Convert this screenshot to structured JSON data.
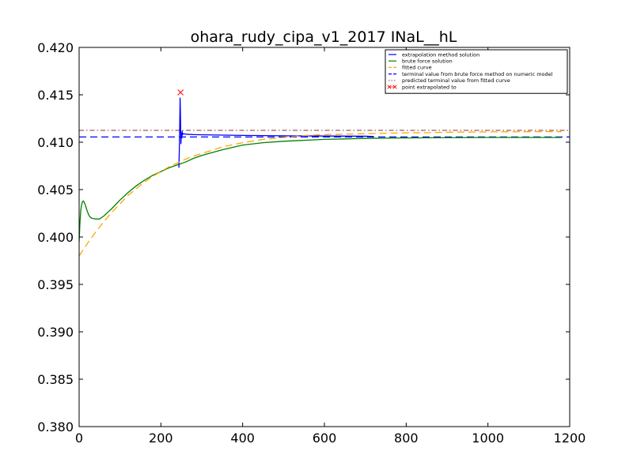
{
  "chart_data": {
    "type": "line",
    "title": "ohara_rudy_cipa_v1_2017 INaL__hL",
    "xlabel": "",
    "ylabel": "",
    "xlim": [
      0,
      1200
    ],
    "ylim": [
      0.38,
      0.42
    ],
    "x_ticks": [
      0,
      200,
      400,
      600,
      800,
      1000,
      1200
    ],
    "x_tick_labels": [
      "0",
      "200",
      "400",
      "600",
      "800",
      "1000",
      "1200"
    ],
    "y_ticks": [
      0.38,
      0.385,
      0.39,
      0.395,
      0.4,
      0.405,
      0.41,
      0.415,
      0.42
    ],
    "y_tick_labels": [
      "0.380",
      "0.385",
      "0.390",
      "0.395",
      "0.400",
      "0.405",
      "0.410",
      "0.415",
      "0.420"
    ],
    "grid": false,
    "legend_position": "top-right",
    "series": [
      {
        "name": "brute force solution",
        "color": "#008000",
        "style": "solid",
        "x": [
          0,
          2,
          4,
          6,
          8,
          10,
          12,
          15,
          20,
          25,
          30,
          40,
          50,
          60,
          70,
          80,
          100,
          120,
          140,
          160,
          180,
          200,
          220,
          240,
          260,
          280,
          300,
          350,
          400,
          450,
          500,
          550,
          600,
          650,
          700,
          800,
          900,
          1000,
          1100,
          1180
        ],
        "y": [
          0.3995,
          0.4015,
          0.4028,
          0.4034,
          0.4037,
          0.4038,
          0.4037,
          0.4034,
          0.4027,
          0.4022,
          0.402,
          0.4019,
          0.4019,
          0.4022,
          0.4026,
          0.403,
          0.4039,
          0.4047,
          0.4054,
          0.406,
          0.4065,
          0.4069,
          0.4073,
          0.4076,
          0.4079,
          0.4083,
          0.4086,
          0.4092,
          0.4097,
          0.40995,
          0.4101,
          0.4102,
          0.4103,
          0.41035,
          0.4104,
          0.41045,
          0.41048,
          0.4105,
          0.4105,
          0.4105
        ]
      },
      {
        "name": "extrapolation method solution",
        "color": "#0000ff",
        "style": "solid",
        "x": [
          244,
          245,
          246,
          247,
          248,
          249,
          250,
          251,
          252,
          253,
          255,
          260,
          280,
          300,
          400,
          500,
          600,
          700,
          720
        ],
        "y": [
          0.4073,
          0.409,
          0.4115,
          0.4147,
          0.4125,
          0.4098,
          0.411,
          0.4104,
          0.4112,
          0.4108,
          0.4109,
          0.41085,
          0.4108,
          0.41078,
          0.41072,
          0.41068,
          0.41065,
          0.41063,
          0.4106
        ]
      },
      {
        "name": "fitted curve",
        "color": "#ffa500",
        "style": "dashed",
        "x": [
          0,
          20,
          40,
          60,
          80,
          100,
          120,
          140,
          160,
          180,
          200,
          220,
          240,
          260,
          280,
          300,
          350,
          400,
          450,
          500,
          550,
          600,
          650,
          700,
          750,
          800,
          850,
          900,
          950,
          1000,
          1050,
          1100,
          1150,
          1180
        ],
        "y": [
          0.398,
          0.3993,
          0.4005,
          0.4016,
          0.4026,
          0.4035,
          0.4044,
          0.4051,
          0.4058,
          0.4064,
          0.4069,
          0.4074,
          0.4078,
          0.4082,
          0.40855,
          0.4088,
          0.4095,
          0.40995,
          0.4103,
          0.4105,
          0.4107,
          0.4108,
          0.41085,
          0.4109,
          0.41095,
          0.41098,
          0.411,
          0.41105,
          0.41107,
          0.41109,
          0.4111,
          0.41111,
          0.41112,
          0.41112
        ]
      }
    ],
    "hlines": [
      {
        "name": "terminal value from brute force method on numeric model",
        "y": 0.41055,
        "color": "#0000ff",
        "style": "dashed"
      },
      {
        "name": "predicted terminal value from fitted curve",
        "y": 0.41125,
        "color": "#a05a5a",
        "style": "dashdot"
      }
    ],
    "markers": [
      {
        "name": "point extrapolated to",
        "x": 248,
        "y": 0.41525,
        "color": "#ff0000",
        "marker": "x"
      }
    ],
    "legend": [
      {
        "label": "extrapolation method solution",
        "color": "#0000ff",
        "style": "solid"
      },
      {
        "label": "brute force solution",
        "color": "#008000",
        "style": "solid"
      },
      {
        "label": "fitted curve",
        "color": "#ffa500",
        "style": "dashed"
      },
      {
        "label": "terminal value from brute force method on numeric model",
        "color": "#0000ff",
        "style": "dashed"
      },
      {
        "label": "predicted terminal value from fitted curve",
        "color": "#a05a5a",
        "style": "dashdot"
      },
      {
        "label": "point extrapolated to",
        "color": "#ff0000",
        "style": "marker-x"
      }
    ]
  }
}
